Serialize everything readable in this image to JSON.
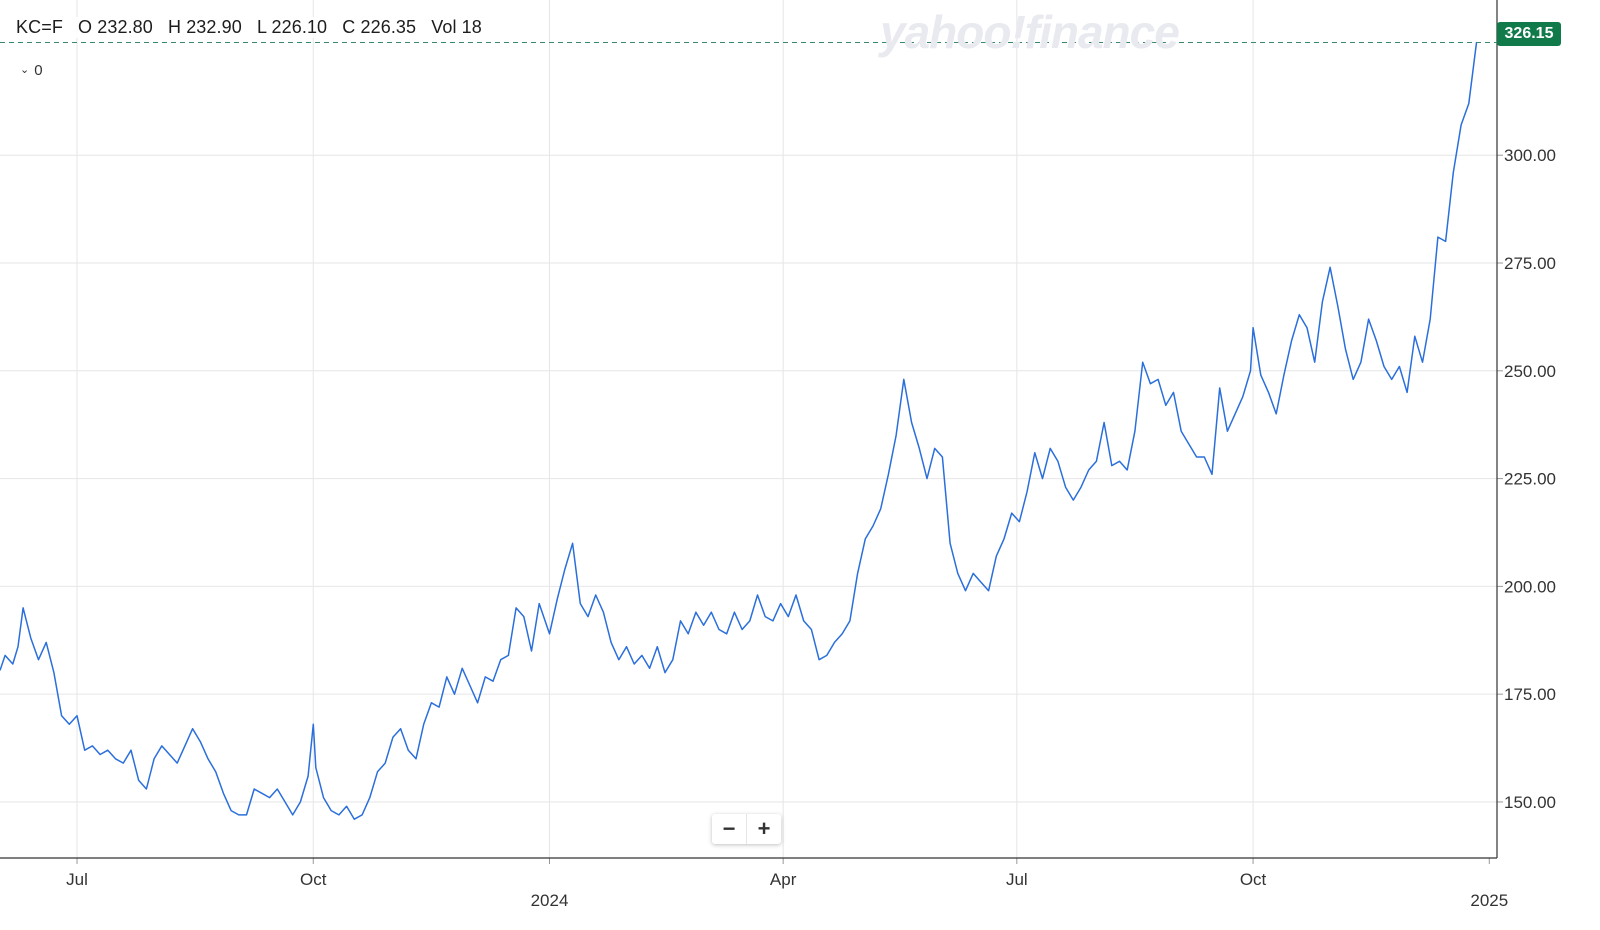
{
  "header": {
    "symbol": "KC=F",
    "open": "O 232.80",
    "high": "H 232.90",
    "low": "L 226.10",
    "close": "C 226.35",
    "volume": "Vol 18"
  },
  "indicator_toggle": {
    "label": "0",
    "icon": "chevron-down-icon"
  },
  "watermark": "yahoo!finance",
  "last_price_label": "326.15",
  "zoom": {
    "minus_label": "−",
    "plus_label": "+"
  },
  "colors": {
    "line": "#2a6fdb",
    "badge": "#117a4a",
    "grid": "#e6e6e6",
    "axis": "#1d1d1f"
  },
  "chart_data": {
    "type": "line",
    "y_ticks": [
      "150.00",
      "175.00",
      "200.00",
      "225.00",
      "250.00",
      "275.00",
      "300.00"
    ],
    "ylim": [
      137,
      336
    ],
    "x_ticks": [
      {
        "date": "2023-07-01",
        "label": "Jul"
      },
      {
        "date": "2023-10-01",
        "label": "Oct"
      },
      {
        "date": "2024-01-01",
        "label": "2024"
      },
      {
        "date": "2024-04-01",
        "label": "Apr"
      },
      {
        "date": "2024-07-01",
        "label": "Jul"
      },
      {
        "date": "2024-10-01",
        "label": "Oct"
      },
      {
        "date": "2025-01-01",
        "label": "2025"
      }
    ],
    "xlim": [
      "2023-06-01",
      "2025-01-04"
    ],
    "grid": true,
    "series": [
      {
        "values": [
          [
            "2023-06-01",
            180.5
          ],
          [
            "2023-06-03",
            184
          ],
          [
            "2023-06-06",
            182
          ],
          [
            "2023-06-08",
            186
          ],
          [
            "2023-06-10",
            195
          ],
          [
            "2023-06-13",
            188
          ],
          [
            "2023-06-16",
            183
          ],
          [
            "2023-06-19",
            187
          ],
          [
            "2023-06-22",
            180
          ],
          [
            "2023-06-25",
            170
          ],
          [
            "2023-06-28",
            168
          ],
          [
            "2023-07-01",
            170
          ],
          [
            "2023-07-04",
            162
          ],
          [
            "2023-07-07",
            163
          ],
          [
            "2023-07-10",
            161
          ],
          [
            "2023-07-13",
            162
          ],
          [
            "2023-07-16",
            160
          ],
          [
            "2023-07-19",
            159
          ],
          [
            "2023-07-22",
            162
          ],
          [
            "2023-07-25",
            155
          ],
          [
            "2023-07-28",
            153
          ],
          [
            "2023-07-31",
            160
          ],
          [
            "2023-08-03",
            163
          ],
          [
            "2023-08-06",
            161
          ],
          [
            "2023-08-09",
            159
          ],
          [
            "2023-08-12",
            163
          ],
          [
            "2023-08-15",
            167
          ],
          [
            "2023-08-18",
            164
          ],
          [
            "2023-08-21",
            160
          ],
          [
            "2023-08-24",
            157
          ],
          [
            "2023-08-27",
            152
          ],
          [
            "2023-08-30",
            148
          ],
          [
            "2023-09-02",
            147
          ],
          [
            "2023-09-05",
            147
          ],
          [
            "2023-09-08",
            153
          ],
          [
            "2023-09-11",
            152
          ],
          [
            "2023-09-14",
            151
          ],
          [
            "2023-09-17",
            153
          ],
          [
            "2023-09-20",
            150
          ],
          [
            "2023-09-23",
            147
          ],
          [
            "2023-09-26",
            150
          ],
          [
            "2023-09-29",
            156
          ],
          [
            "2023-10-01",
            168
          ],
          [
            "2023-10-02",
            158
          ],
          [
            "2023-10-05",
            151
          ],
          [
            "2023-10-08",
            148
          ],
          [
            "2023-10-11",
            147
          ],
          [
            "2023-10-14",
            149
          ],
          [
            "2023-10-17",
            146
          ],
          [
            "2023-10-20",
            147
          ],
          [
            "2023-10-23",
            151
          ],
          [
            "2023-10-26",
            157
          ],
          [
            "2023-10-29",
            159
          ],
          [
            "2023-11-01",
            165
          ],
          [
            "2023-11-04",
            167
          ],
          [
            "2023-11-07",
            162
          ],
          [
            "2023-11-10",
            160
          ],
          [
            "2023-11-13",
            168
          ],
          [
            "2023-11-16",
            173
          ],
          [
            "2023-11-19",
            172
          ],
          [
            "2023-11-22",
            179
          ],
          [
            "2023-11-25",
            175
          ],
          [
            "2023-11-28",
            181
          ],
          [
            "2023-12-01",
            177
          ],
          [
            "2023-12-04",
            173
          ],
          [
            "2023-12-07",
            179
          ],
          [
            "2023-12-10",
            178
          ],
          [
            "2023-12-13",
            183
          ],
          [
            "2023-12-16",
            184
          ],
          [
            "2023-12-19",
            195
          ],
          [
            "2023-12-22",
            193
          ],
          [
            "2023-12-25",
            185
          ],
          [
            "2023-12-28",
            196
          ],
          [
            "2024-01-01",
            189
          ],
          [
            "2024-01-04",
            197
          ],
          [
            "2024-01-07",
            204
          ],
          [
            "2024-01-10",
            210
          ],
          [
            "2024-01-13",
            196
          ],
          [
            "2024-01-16",
            193
          ],
          [
            "2024-01-19",
            198
          ],
          [
            "2024-01-22",
            194
          ],
          [
            "2024-01-25",
            187
          ],
          [
            "2024-01-28",
            183
          ],
          [
            "2024-01-31",
            186
          ],
          [
            "2024-02-03",
            182
          ],
          [
            "2024-02-06",
            184
          ],
          [
            "2024-02-09",
            181
          ],
          [
            "2024-02-12",
            186
          ],
          [
            "2024-02-15",
            180
          ],
          [
            "2024-02-18",
            183
          ],
          [
            "2024-02-21",
            192
          ],
          [
            "2024-02-24",
            189
          ],
          [
            "2024-02-27",
            194
          ],
          [
            "2024-03-01",
            191
          ],
          [
            "2024-03-04",
            194
          ],
          [
            "2024-03-07",
            190
          ],
          [
            "2024-03-10",
            189
          ],
          [
            "2024-03-13",
            194
          ],
          [
            "2024-03-16",
            190
          ],
          [
            "2024-03-19",
            192
          ],
          [
            "2024-03-22",
            198
          ],
          [
            "2024-03-25",
            193
          ],
          [
            "2024-03-28",
            192
          ],
          [
            "2024-03-31",
            196
          ],
          [
            "2024-04-03",
            193
          ],
          [
            "2024-04-06",
            198
          ],
          [
            "2024-04-09",
            192
          ],
          [
            "2024-04-12",
            190
          ],
          [
            "2024-04-15",
            183
          ],
          [
            "2024-04-18",
            184
          ],
          [
            "2024-04-21",
            187
          ],
          [
            "2024-04-24",
            189
          ],
          [
            "2024-04-27",
            192
          ],
          [
            "2024-04-30",
            203
          ],
          [
            "2024-05-03",
            211
          ],
          [
            "2024-05-06",
            214
          ],
          [
            "2024-05-09",
            218
          ],
          [
            "2024-05-12",
            226
          ],
          [
            "2024-05-15",
            235
          ],
          [
            "2024-05-18",
            248
          ],
          [
            "2024-05-21",
            238
          ],
          [
            "2024-05-24",
            232
          ],
          [
            "2024-05-27",
            225
          ],
          [
            "2024-05-30",
            232
          ],
          [
            "2024-06-02",
            230
          ],
          [
            "2024-06-05",
            210
          ],
          [
            "2024-06-08",
            203
          ],
          [
            "2024-06-11",
            199
          ],
          [
            "2024-06-14",
            203
          ],
          [
            "2024-06-17",
            201
          ],
          [
            "2024-06-20",
            199
          ],
          [
            "2024-06-23",
            207
          ],
          [
            "2024-06-26",
            211
          ],
          [
            "2024-06-29",
            217
          ],
          [
            "2024-07-02",
            215
          ],
          [
            "2024-07-05",
            222
          ],
          [
            "2024-07-08",
            231
          ],
          [
            "2024-07-11",
            225
          ],
          [
            "2024-07-14",
            232
          ],
          [
            "2024-07-17",
            229
          ],
          [
            "2024-07-20",
            223
          ],
          [
            "2024-07-23",
            220
          ],
          [
            "2024-07-26",
            223
          ],
          [
            "2024-07-29",
            227
          ],
          [
            "2024-08-01",
            229
          ],
          [
            "2024-08-04",
            238
          ],
          [
            "2024-08-07",
            228
          ],
          [
            "2024-08-10",
            229
          ],
          [
            "2024-08-13",
            227
          ],
          [
            "2024-08-16",
            236
          ],
          [
            "2024-08-19",
            252
          ],
          [
            "2024-08-22",
            247
          ],
          [
            "2024-08-25",
            248
          ],
          [
            "2024-08-28",
            242
          ],
          [
            "2024-08-31",
            245
          ],
          [
            "2024-09-03",
            236
          ],
          [
            "2024-09-06",
            233
          ],
          [
            "2024-09-09",
            230
          ],
          [
            "2024-09-12",
            230
          ],
          [
            "2024-09-15",
            226
          ],
          [
            "2024-09-18",
            246
          ],
          [
            "2024-09-21",
            236
          ],
          [
            "2024-09-24",
            240
          ],
          [
            "2024-09-27",
            244
          ],
          [
            "2024-09-30",
            250
          ],
          [
            "2024-10-01",
            260
          ],
          [
            "2024-10-04",
            249
          ],
          [
            "2024-10-07",
            245
          ],
          [
            "2024-10-10",
            240
          ],
          [
            "2024-10-13",
            249
          ],
          [
            "2024-10-16",
            257
          ],
          [
            "2024-10-19",
            263
          ],
          [
            "2024-10-22",
            260
          ],
          [
            "2024-10-25",
            252
          ],
          [
            "2024-10-28",
            266
          ],
          [
            "2024-10-31",
            274
          ],
          [
            "2024-11-03",
            265
          ],
          [
            "2024-11-06",
            255
          ],
          [
            "2024-11-09",
            248
          ],
          [
            "2024-11-12",
            252
          ],
          [
            "2024-11-15",
            262
          ],
          [
            "2024-11-18",
            257
          ],
          [
            "2024-11-21",
            251
          ],
          [
            "2024-11-24",
            248
          ],
          [
            "2024-11-27",
            251
          ],
          [
            "2024-11-30",
            245
          ],
          [
            "2024-12-03",
            258
          ],
          [
            "2024-12-06",
            252
          ],
          [
            "2024-12-09",
            262
          ],
          [
            "2024-12-12",
            281
          ],
          [
            "2024-12-15",
            280
          ],
          [
            "2024-12-18",
            296
          ],
          [
            "2024-12-21",
            307
          ],
          [
            "2024-12-24",
            312
          ],
          [
            "2024-12-27",
            326.15
          ]
        ]
      }
    ],
    "last_value": 326.15
  }
}
